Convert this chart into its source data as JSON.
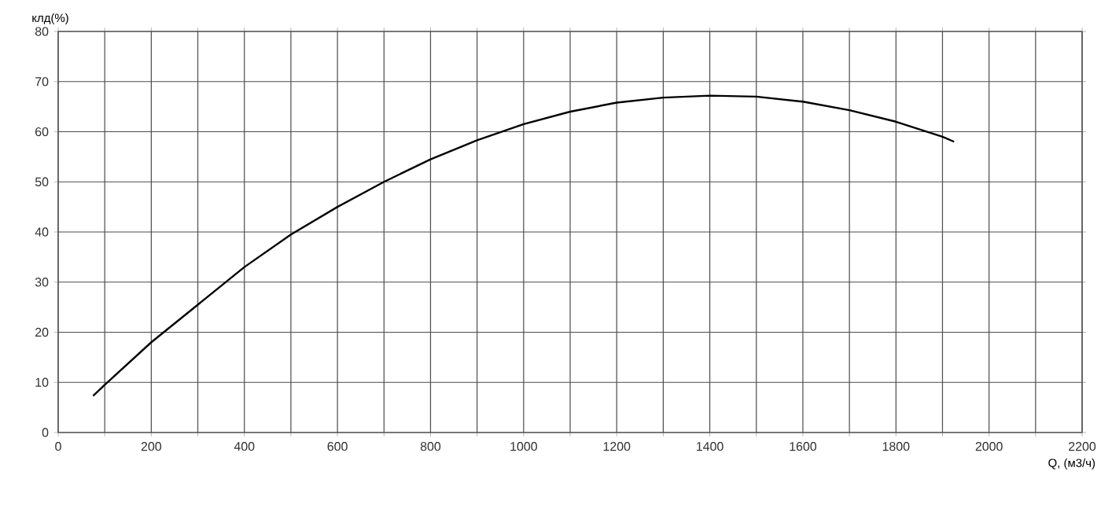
{
  "chart_data": {
    "type": "line",
    "xlabel": "Q, (м3/ч)",
    "ylabel": "клд(%)",
    "x": [
      75,
      100,
      200,
      300,
      400,
      500,
      600,
      700,
      800,
      900,
      1000,
      1100,
      1200,
      1300,
      1400,
      1500,
      1600,
      1700,
      1800,
      1900,
      1925
    ],
    "series": [
      {
        "color": "#000000",
        "values": [
          7.3,
          9.5,
          18,
          25.5,
          33,
          39.5,
          45,
          50,
          54.5,
          58.3,
          61.5,
          64,
          65.8,
          66.8,
          67.2,
          67,
          66,
          64.3,
          62,
          59,
          58
        ]
      }
    ],
    "xlim": [
      0,
      2200
    ],
    "xticks": [
      0,
      {
        "value": 100,
        "label": null
      },
      200,
      {
        "value": 300,
        "label": null
      },
      400,
      {
        "value": 500,
        "label": null
      },
      600,
      {
        "value": 700,
        "label": null
      },
      800,
      {
        "value": 900,
        "label": null
      },
      1000,
      {
        "value": 1100,
        "label": null
      },
      1200,
      {
        "value": 1300,
        "label": null
      },
      1400,
      {
        "value": 1500,
        "label": null
      },
      1600,
      {
        "value": 1700,
        "label": null
      },
      1800,
      {
        "value": 1900,
        "label": null
      },
      2000,
      {
        "value": 2100,
        "label": null
      },
      2200
    ],
    "ylim": [
      0,
      80
    ],
    "yticks": [
      0,
      10,
      20,
      30,
      40,
      50,
      60,
      70,
      80
    ],
    "grid": true,
    "marker": "none",
    "line_style": "solid"
  }
}
